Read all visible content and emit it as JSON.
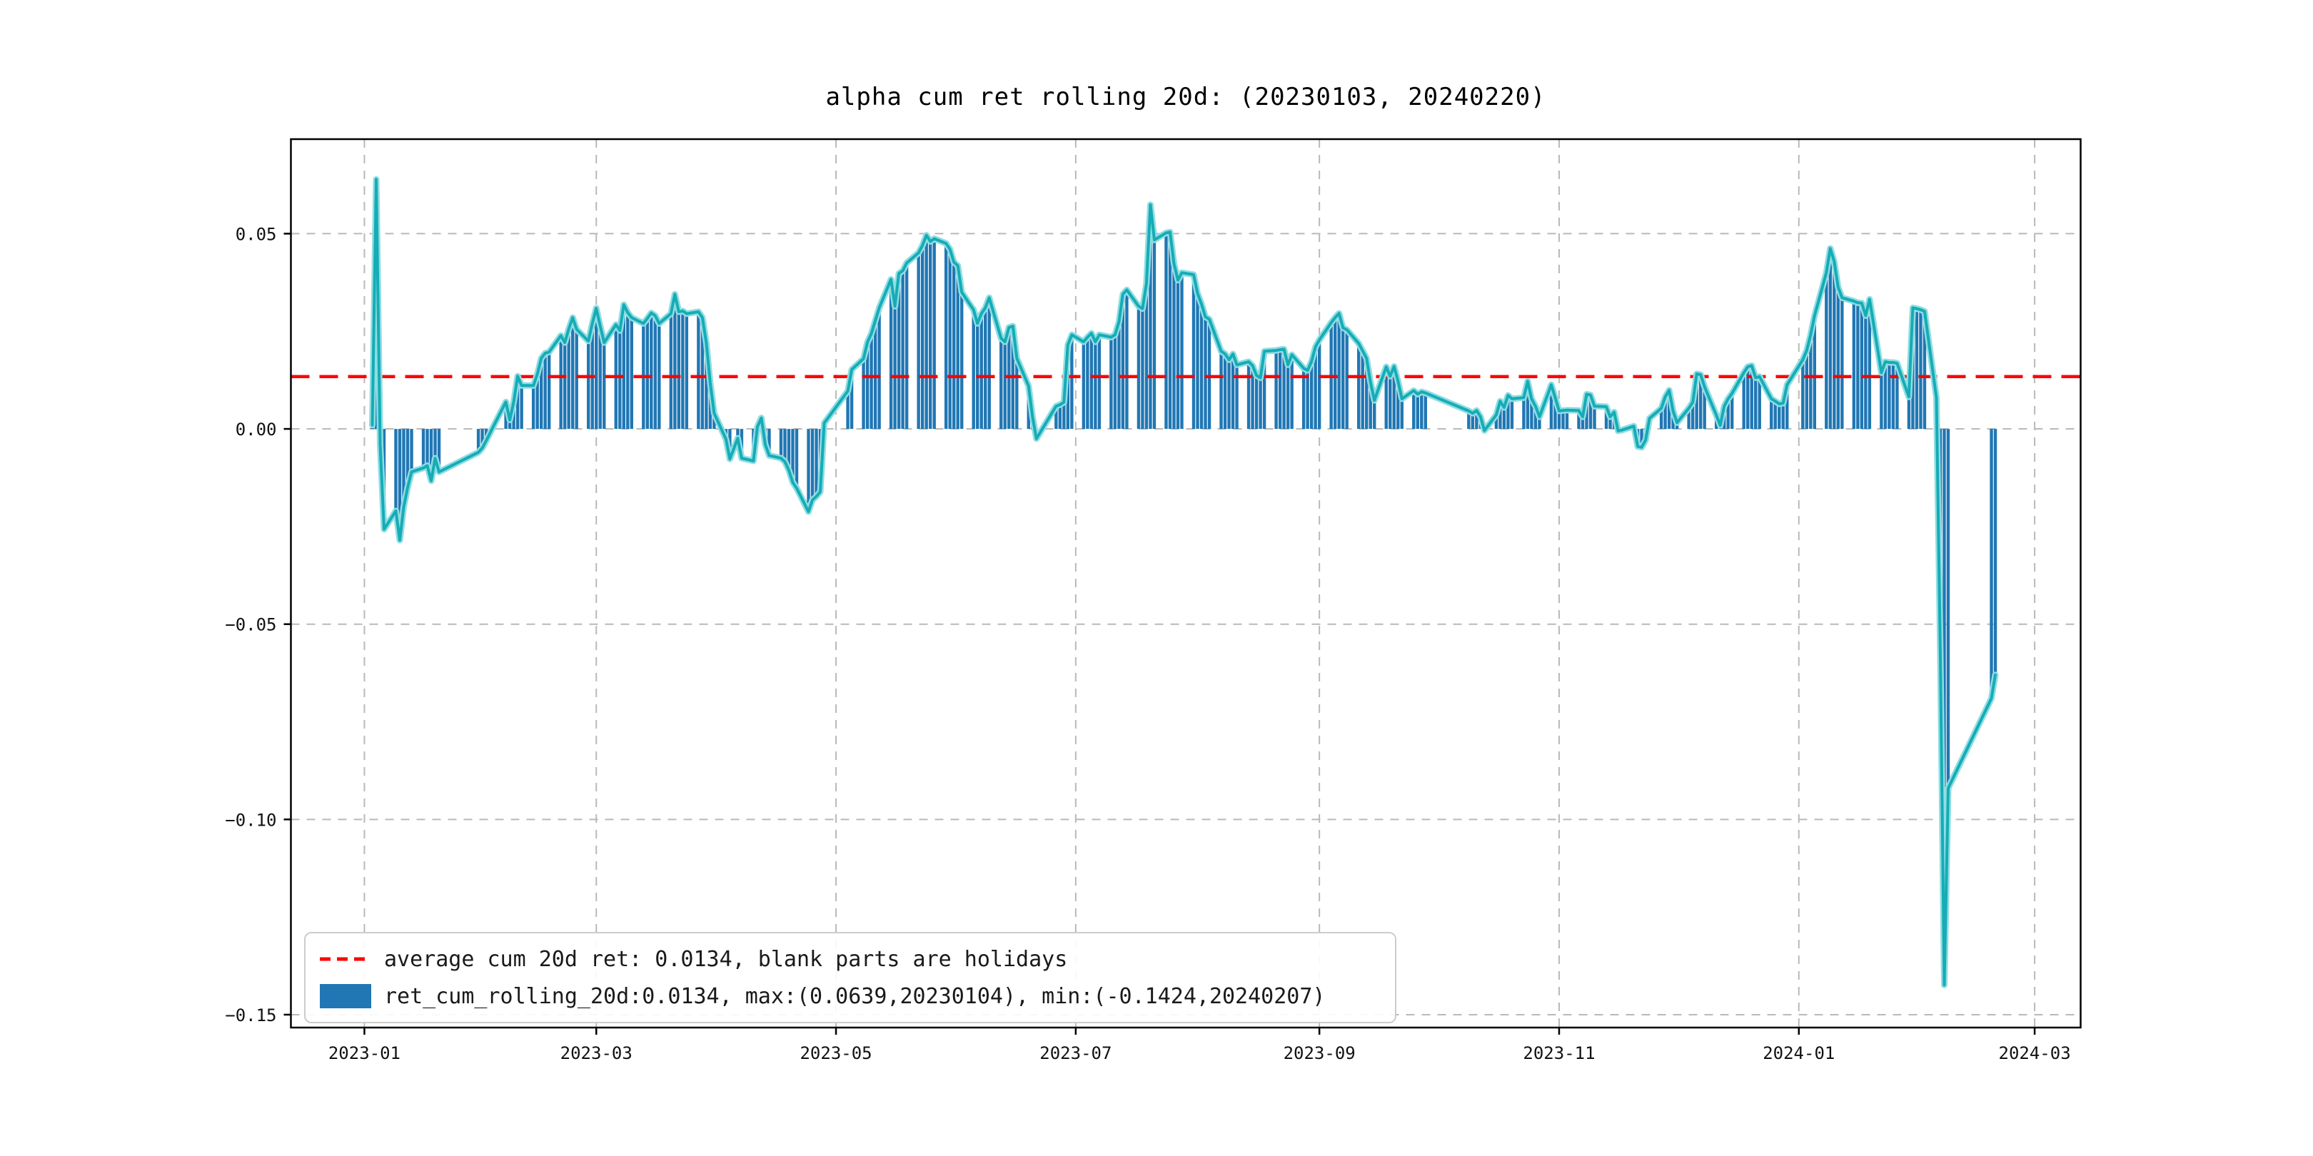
{
  "figure": {
    "background": "#ffffff"
  },
  "chart_data": {
    "type": "bar",
    "title": "alpha cum ret rolling 20d: (20230103, 20240220)",
    "xlabel": "",
    "ylabel": "",
    "grid": true,
    "legend_position": "lower left",
    "bar_color": "#2077b4",
    "line_color": "#15acb6",
    "line_halo_color": "#8fdde2",
    "grid_color": "#b9b9b9",
    "axis_color": "#000000",
    "average_line": {
      "value": 0.0134,
      "color": "#ff0000",
      "style": "dashed"
    },
    "stats": {
      "mean": 0.0134,
      "max": {
        "value": 0.0639,
        "date": "20230104"
      },
      "min": {
        "value": -0.1424,
        "date": "20240207"
      }
    },
    "legend": {
      "items": [
        {
          "type": "dashed-line",
          "color": "#ff0000",
          "label": "average cum 20d ret: 0.0134, blank parts are holidays"
        },
        {
          "type": "bar",
          "color": "#2077b4",
          "label": "ret_cum_rolling_20d:0.0134, max:(0.0639,20230104), min:(-0.1424,20240207)"
        }
      ]
    },
    "x_ticks": [
      {
        "label": "2023-01",
        "date": "20230101"
      },
      {
        "label": "2023-03",
        "date": "20230301"
      },
      {
        "label": "2023-05",
        "date": "20230501"
      },
      {
        "label": "2023-07",
        "date": "20230701"
      },
      {
        "label": "2023-09",
        "date": "20230901"
      },
      {
        "label": "2023-11",
        "date": "20231101"
      },
      {
        "label": "2024-01",
        "date": "20240101"
      },
      {
        "label": "2024-03",
        "date": "20240301"
      }
    ],
    "y_ticks": [
      {
        "label": "0.05",
        "value": 0.05
      },
      {
        "label": "0.00",
        "value": 0.0
      },
      {
        "label": "−0.05",
        "value": -0.05
      },
      {
        "label": "−0.10",
        "value": -0.1
      },
      {
        "label": "−0.15",
        "value": -0.15
      }
    ],
    "ylim": [
      -0.1533,
      0.0742
    ],
    "xlim_days": [
      -18.7,
      436.7
    ],
    "series_name": "ret_cum_rolling_20d",
    "points": [
      [
        "20230103",
        0.001
      ],
      [
        "20230104",
        0.0639
      ],
      [
        "20230105",
        -0.004
      ],
      [
        "20230106",
        -0.0257
      ],
      [
        "20230109",
        -0.021
      ],
      [
        "20230110",
        -0.0285
      ],
      [
        "20230111",
        -0.02
      ],
      [
        "20230112",
        -0.015
      ],
      [
        "20230113",
        -0.011
      ],
      [
        "20230116",
        -0.01
      ],
      [
        "20230117",
        -0.0094
      ],
      [
        "20230118",
        -0.0133
      ],
      [
        "20230119",
        -0.0075
      ],
      [
        "20230120",
        -0.011
      ],
      [
        "20230130",
        -0.006
      ],
      [
        "20230131",
        -0.0049
      ],
      [
        "20230201",
        -0.003
      ],
      [
        "20230202",
        -0.001
      ],
      [
        "20230203",
        0.001
      ],
      [
        "20230206",
        0.0069
      ],
      [
        "20230207",
        0.0023
      ],
      [
        "20230208",
        0.0069
      ],
      [
        "20230209",
        0.0135
      ],
      [
        "20230210",
        0.0111
      ],
      [
        "20230213",
        0.0111
      ],
      [
        "20230214",
        0.014
      ],
      [
        "20230215",
        0.0181
      ],
      [
        "20230216",
        0.0194
      ],
      [
        "20230217",
        0.0197
      ],
      [
        "20230220",
        0.0239
      ],
      [
        "20230221",
        0.0221
      ],
      [
        "20230222",
        0.0256
      ],
      [
        "20230223",
        0.0285
      ],
      [
        "20230224",
        0.0255
      ],
      [
        "20230227",
        0.0225
      ],
      [
        "20230228",
        0.027
      ],
      [
        "20230301",
        0.0309
      ],
      [
        "20230302",
        0.0264
      ],
      [
        "20230303",
        0.0221
      ],
      [
        "20230306",
        0.0267
      ],
      [
        "20230307",
        0.0252
      ],
      [
        "20230308",
        0.0318
      ],
      [
        "20230309",
        0.0298
      ],
      [
        "20230310",
        0.0285
      ],
      [
        "20230313",
        0.027
      ],
      [
        "20230314",
        0.0283
      ],
      [
        "20230315",
        0.0297
      ],
      [
        "20230316",
        0.029
      ],
      [
        "20230317",
        0.027
      ],
      [
        "20230320",
        0.0295
      ],
      [
        "20230321",
        0.0345
      ],
      [
        "20230322",
        0.03
      ],
      [
        "20230323",
        0.0302
      ],
      [
        "20230324",
        0.0295
      ],
      [
        "20230327",
        0.03
      ],
      [
        "20230328",
        0.0285
      ],
      [
        "20230329",
        0.022
      ],
      [
        "20230330",
        0.0117
      ],
      [
        "20230331",
        0.004
      ],
      [
        "20230403",
        -0.0026
      ],
      [
        "20230404",
        -0.0077
      ],
      [
        "20230406",
        -0.0024
      ],
      [
        "20230407",
        -0.0075
      ],
      [
        "20230410",
        -0.0082
      ],
      [
        "20230411",
        0.0005
      ],
      [
        "20230412",
        0.0028
      ],
      [
        "20230413",
        -0.004
      ],
      [
        "20230414",
        -0.0068
      ],
      [
        "20230417",
        -0.0075
      ],
      [
        "20230418",
        -0.0084
      ],
      [
        "20230419",
        -0.0106
      ],
      [
        "20230420",
        -0.0137
      ],
      [
        "20230421",
        -0.0152
      ],
      [
        "20230424",
        -0.0212
      ],
      [
        "20230425",
        -0.0182
      ],
      [
        "20230426",
        -0.0173
      ],
      [
        "20230427",
        -0.0161
      ],
      [
        "20230428",
        0.0015
      ],
      [
        "20230504",
        0.0097
      ],
      [
        "20230505",
        0.0152
      ],
      [
        "20230508",
        0.018
      ],
      [
        "20230509",
        0.0222
      ],
      [
        "20230510",
        0.0244
      ],
      [
        "20230511",
        0.0277
      ],
      [
        "20230512",
        0.031
      ],
      [
        "20230515",
        0.0383
      ],
      [
        "20230516",
        0.0314
      ],
      [
        "20230517",
        0.0398
      ],
      [
        "20230518",
        0.0405
      ],
      [
        "20230519",
        0.0425
      ],
      [
        "20230522",
        0.0451
      ],
      [
        "20230523",
        0.047
      ],
      [
        "20230524",
        0.0496
      ],
      [
        "20230525",
        0.048
      ],
      [
        "20230526",
        0.0487
      ],
      [
        "20230529",
        0.0475
      ],
      [
        "20230530",
        0.046
      ],
      [
        "20230531",
        0.0427
      ],
      [
        "20230601",
        0.0418
      ],
      [
        "20230602",
        0.035
      ],
      [
        "20230605",
        0.0305
      ],
      [
        "20230606",
        0.027
      ],
      [
        "20230607",
        0.0295
      ],
      [
        "20230608",
        0.031
      ],
      [
        "20230609",
        0.0336
      ],
      [
        "20230612",
        0.0232
      ],
      [
        "20230613",
        0.0223
      ],
      [
        "20230614",
        0.026
      ],
      [
        "20230615",
        0.0263
      ],
      [
        "20230616",
        0.0181
      ],
      [
        "20230619",
        0.011
      ],
      [
        "20230620",
        0.0031
      ],
      [
        "20230621",
        -0.0025
      ],
      [
        "20230626",
        0.0058
      ],
      [
        "20230627",
        0.0062
      ],
      [
        "20230628",
        0.0068
      ],
      [
        "20230629",
        0.0215
      ],
      [
        "20230630",
        0.0241
      ],
      [
        "20230703",
        0.0223
      ],
      [
        "20230704",
        0.0235
      ],
      [
        "20230705",
        0.0245
      ],
      [
        "20230706",
        0.0223
      ],
      [
        "20230707",
        0.0241
      ],
      [
        "20230710",
        0.0235
      ],
      [
        "20230711",
        0.0241
      ],
      [
        "20230712",
        0.0274
      ],
      [
        "20230713",
        0.0345
      ],
      [
        "20230714",
        0.0356
      ],
      [
        "20230717",
        0.0314
      ],
      [
        "20230718",
        0.0308
      ],
      [
        "20230719",
        0.0372
      ],
      [
        "20230720",
        0.0574
      ],
      [
        "20230721",
        0.0484
      ],
      [
        "20230724",
        0.0502
      ],
      [
        "20230725",
        0.0504
      ],
      [
        "20230726",
        0.0423
      ],
      [
        "20230727",
        0.0381
      ],
      [
        "20230728",
        0.04
      ],
      [
        "20230731",
        0.0395
      ],
      [
        "20230801",
        0.0347
      ],
      [
        "20230802",
        0.032
      ],
      [
        "20230803",
        0.0287
      ],
      [
        "20230804",
        0.0281
      ],
      [
        "20230807",
        0.0199
      ],
      [
        "20230808",
        0.0192
      ],
      [
        "20230809",
        0.0177
      ],
      [
        "20230810",
        0.0192
      ],
      [
        "20230811",
        0.0164
      ],
      [
        "20230814",
        0.0172
      ],
      [
        "20230815",
        0.0162
      ],
      [
        "20230816",
        0.0137
      ],
      [
        "20230817",
        0.0131
      ],
      [
        "20230818",
        0.0199
      ],
      [
        "20230821",
        0.0201
      ],
      [
        "20230822",
        0.0203
      ],
      [
        "20230823",
        0.0204
      ],
      [
        "20230824",
        0.0164
      ],
      [
        "20230825",
        0.019
      ],
      [
        "20230828",
        0.0155
      ],
      [
        "20230829",
        0.015
      ],
      [
        "20230830",
        0.0173
      ],
      [
        "20230831",
        0.021
      ],
      [
        "20230901",
        0.0228
      ],
      [
        "20230904",
        0.0272
      ],
      [
        "20230905",
        0.0285
      ],
      [
        "20230906",
        0.0296
      ],
      [
        "20230907",
        0.0259
      ],
      [
        "20230908",
        0.0254
      ],
      [
        "20230911",
        0.0219
      ],
      [
        "20230912",
        0.02
      ],
      [
        "20230913",
        0.0181
      ],
      [
        "20230914",
        0.012
      ],
      [
        "20230915",
        0.0073
      ],
      [
        "20230918",
        0.0159
      ],
      [
        "20230919",
        0.0135
      ],
      [
        "20230920",
        0.016
      ],
      [
        "20230921",
        0.0122
      ],
      [
        "20230922",
        0.0077
      ],
      [
        "20230925",
        0.0098
      ],
      [
        "20230926",
        0.0089
      ],
      [
        "20230927",
        0.0095
      ],
      [
        "20230928",
        0.0092
      ],
      [
        "20231009",
        0.0046
      ],
      [
        "20231010",
        0.004
      ],
      [
        "20231011",
        0.0047
      ],
      [
        "20231012",
        0.0031
      ],
      [
        "20231013",
        -0.0004
      ],
      [
        "20231016",
        0.0036
      ],
      [
        "20231017",
        0.0071
      ],
      [
        "20231018",
        0.0055
      ],
      [
        "20231019",
        0.0086
      ],
      [
        "20231020",
        0.0077
      ],
      [
        "20231023",
        0.008
      ],
      [
        "20231024",
        0.0122
      ],
      [
        "20231025",
        0.0077
      ],
      [
        "20231026",
        0.0058
      ],
      [
        "20231027",
        0.0031
      ],
      [
        "20231030",
        0.0113
      ],
      [
        "20231031",
        0.008
      ],
      [
        "20231101",
        0.0046
      ],
      [
        "20231102",
        0.0047
      ],
      [
        "20231103",
        0.0048
      ],
      [
        "20231106",
        0.0047
      ],
      [
        "20231107",
        0.0031
      ],
      [
        "20231108",
        0.0089
      ],
      [
        "20231109",
        0.0087
      ],
      [
        "20231110",
        0.0058
      ],
      [
        "20231113",
        0.0057
      ],
      [
        "20231114",
        0.0031
      ],
      [
        "20231115",
        0.0043
      ],
      [
        "20231116",
        -0.0005
      ],
      [
        "20231117",
        -0.0003
      ],
      [
        "20231120",
        0.0007
      ],
      [
        "20231121",
        -0.0045
      ],
      [
        "20231122",
        -0.0047
      ],
      [
        "20231123",
        -0.0029
      ],
      [
        "20231124",
        0.0027
      ],
      [
        "20231127",
        0.0053
      ],
      [
        "20231128",
        0.0082
      ],
      [
        "20231129",
        0.0099
      ],
      [
        "20231130",
        0.0046
      ],
      [
        "20231201",
        0.0016
      ],
      [
        "20231204",
        0.0053
      ],
      [
        "20231205",
        0.0068
      ],
      [
        "20231206",
        0.0141
      ],
      [
        "20231207",
        0.0139
      ],
      [
        "20231208",
        0.0108
      ],
      [
        "20231211",
        0.0035
      ],
      [
        "20231212",
        0.0009
      ],
      [
        "20231213",
        0.0058
      ],
      [
        "20231214",
        0.0077
      ],
      [
        "20231215",
        0.0091
      ],
      [
        "20231218",
        0.0144
      ],
      [
        "20231219",
        0.0159
      ],
      [
        "20231220",
        0.0162
      ],
      [
        "20231221",
        0.0131
      ],
      [
        "20231222",
        0.0134
      ],
      [
        "20231225",
        0.0077
      ],
      [
        "20231226",
        0.0071
      ],
      [
        "20231227",
        0.0064
      ],
      [
        "20231228",
        0.0066
      ],
      [
        "20231229",
        0.0113
      ],
      [
        "20240102",
        0.0177
      ],
      [
        "20240103",
        0.0201
      ],
      [
        "20240104",
        0.0241
      ],
      [
        "20240105",
        0.029
      ],
      [
        "20240108",
        0.04
      ],
      [
        "20240109",
        0.0462
      ],
      [
        "20240110",
        0.0429
      ],
      [
        "20240111",
        0.0363
      ],
      [
        "20240112",
        0.0336
      ],
      [
        "20240115",
        0.0327
      ],
      [
        "20240116",
        0.0323
      ],
      [
        "20240117",
        0.0322
      ],
      [
        "20240118",
        0.029
      ],
      [
        "20240119",
        0.0332
      ],
      [
        "20240122",
        0.0144
      ],
      [
        "20240123",
        0.0172
      ],
      [
        "20240124",
        0.017
      ],
      [
        "20240125",
        0.017
      ],
      [
        "20240126",
        0.0168
      ],
      [
        "20240129",
        0.0082
      ],
      [
        "20240130",
        0.031
      ],
      [
        "20240131",
        0.0308
      ],
      [
        "20240201",
        0.0305
      ],
      [
        "20240202",
        0.0301
      ],
      [
        "20240205",
        0.008
      ],
      [
        "20240206",
        -0.058
      ],
      [
        "20240207",
        -0.1424
      ],
      [
        "20240208",
        -0.092
      ],
      [
        "20240219",
        -0.069
      ],
      [
        "20240220",
        -0.063
      ]
    ]
  }
}
